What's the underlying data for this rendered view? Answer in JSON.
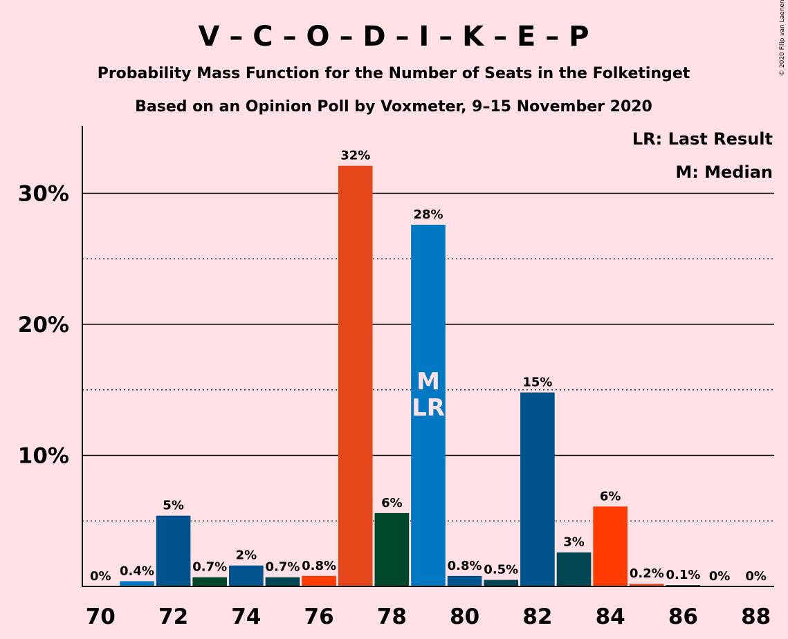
{
  "title": "V – C – O – D – I – K – E – P",
  "subtitle1": "Probability Mass Function for the Number of Seats in the Folketinget",
  "subtitle2": "Based on an Opinion Poll by Voxmeter, 9–15 November 2020",
  "copyright": "© 2020 Filip van Laenen",
  "legend": {
    "last_result": "LR: Last Result",
    "median": "M: Median"
  },
  "chart_data": {
    "type": "bar",
    "x": [
      70,
      71,
      72,
      73,
      74,
      75,
      76,
      77,
      78,
      79,
      80,
      81,
      82,
      83,
      84,
      85,
      86,
      87,
      88
    ],
    "values": [
      0.0,
      0.4,
      5.4,
      0.7,
      1.6,
      0.7,
      0.8,
      32.1,
      5.6,
      27.6,
      0.8,
      0.5,
      14.8,
      2.6,
      6.1,
      0.2,
      0.1,
      0.0,
      0.0
    ],
    "labels": [
      "0%",
      "0.4%",
      "5%",
      "0.7%",
      "2%",
      "0.7%",
      "0.8%",
      "32%",
      "6%",
      "28%",
      "0.8%",
      "0.5%",
      "15%",
      "3%",
      "6%",
      "0.2%",
      "0.1%",
      "0%",
      "0%"
    ],
    "colors": [
      "#0079C2",
      "#0079C2",
      "#00538D",
      "#00482A",
      "#00538D",
      "#004653",
      "#FF3C00",
      "#E5461A",
      "#00482A",
      "#0079C2",
      "#00538D",
      "#004653",
      "#00538D",
      "#004653",
      "#FF3C00",
      "#E5461A",
      "#00482A",
      "#0079C2",
      "#00538D"
    ],
    "x_ticks": [
      "70",
      "72",
      "74",
      "76",
      "78",
      "80",
      "82",
      "84",
      "86",
      "88"
    ],
    "y_ticks": [
      "10%",
      "20%",
      "30%"
    ],
    "ylim": [
      0,
      35
    ],
    "median_seat": 79,
    "last_result_seat": 79,
    "median_marker": "M",
    "last_result_marker": "LR"
  }
}
